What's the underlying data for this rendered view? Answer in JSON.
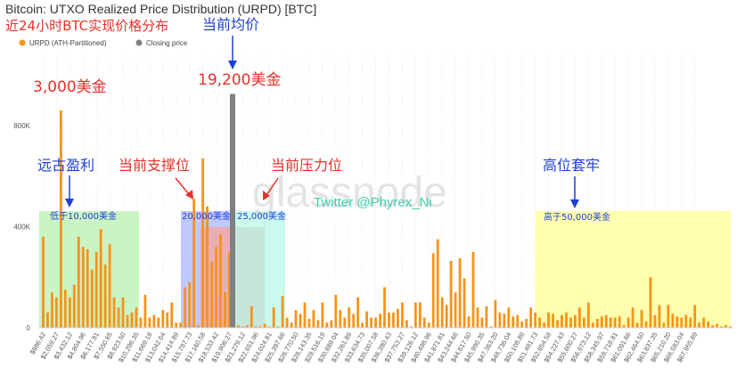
{
  "chart_data": {
    "type": "bar",
    "title": "Bitcoin: UTXO Realized Price Distribution (URPD) [BTC]",
    "subtitle": "近24小时BTC实现价格分布",
    "legend": {
      "placement": "top-left",
      "items": [
        {
          "name": "URPD (ATH-Partitioned)",
          "color": "#f7931a"
        },
        {
          "name": "Closing price",
          "color": "#7f7f7f"
        }
      ]
    },
    "y_axis": {
      "ticks": [
        {
          "value": 0,
          "label": "0"
        },
        {
          "value": 400000,
          "label": "400K"
        },
        {
          "value": 800000,
          "label": "800K"
        }
      ],
      "ylim": [
        0,
        1050000
      ]
    },
    "grid": "vertical-dotted",
    "watermarks": [
      "glassnode",
      "Twitter @Phyrex_Ni"
    ],
    "x_tick_labels": [
      "$986.42",
      "$2,059.27",
      "$3,432.12",
      "$4,804.96",
      "$6,177.81",
      "$7,550.65",
      "$8,923.50",
      "$10,296.35",
      "$11,669.19",
      "$13,042.04",
      "$14,414.89",
      "$15,787.73",
      "$17,160.58",
      "$18,533.42",
      "$19,906.27",
      "$21,279.12",
      "$22,651.96",
      "$24,024.81",
      "$25,397.66",
      "$26,770.50",
      "$28,143.35",
      "$29,516.19",
      "$30,889.04",
      "$32,261.89",
      "$33,634.73",
      "$35,007.58",
      "$36,380.43",
      "$37,753.27",
      "$39,126.12",
      "$40,498.96",
      "$41,871.81",
      "$43,244.66",
      "$44,617.50",
      "$45,990.35",
      "$47,363.20",
      "$48,736.04",
      "$50,108.89",
      "$51,481.73",
      "$52,854.58",
      "$54,227.43",
      "$55,600.27",
      "$56,973.12",
      "$58,345.97",
      "$59,718.81",
      "$61,091.66",
      "$62,464.50",
      "$63,837.35",
      "$65,210.20",
      "$66,583.04",
      "$67,955.89"
    ],
    "x_tick_every": 3,
    "values": [
      360000,
      60000,
      140000,
      120000,
      860000,
      150000,
      120000,
      170000,
      360000,
      320000,
      310000,
      230000,
      300000,
      390000,
      250000,
      330000,
      120000,
      80000,
      120000,
      50000,
      60000,
      80000,
      40000,
      130000,
      40000,
      50000,
      40000,
      70000,
      60000,
      100000,
      20000,
      20000,
      160000,
      180000,
      510000,
      10000,
      670000,
      480000,
      260000,
      320000,
      370000,
      140000,
      300000,
      100000,
      10000,
      5000,
      10000,
      85000,
      5000,
      5000,
      15000,
      5000,
      80000,
      5000,
      125000,
      40000,
      20000,
      70000,
      55000,
      100000,
      35000,
      70000,
      30000,
      100000,
      20000,
      30000,
      130000,
      70000,
      40000,
      80000,
      55000,
      120000,
      20000,
      65000,
      40000,
      40000,
      55000,
      160000,
      60000,
      60000,
      75000,
      100000,
      30000,
      5000,
      100000,
      100000,
      40000,
      20000,
      295000,
      350000,
      120000,
      90000,
      265000,
      140000,
      275000,
      195000,
      45000,
      300000,
      80000,
      40000,
      85000,
      5000,
      110000,
      60000,
      55000,
      80000,
      45000,
      50000,
      25000,
      35000,
      80000,
      60000,
      40000,
      20000,
      60000,
      55000,
      30000,
      50000,
      60000,
      40000,
      50000,
      80000,
      40000,
      100000,
      20000,
      35000,
      45000,
      50000,
      40000,
      40000,
      45000,
      10000,
      40000,
      80000,
      20000,
      70000,
      25000,
      200000,
      50000,
      90000,
      20000,
      90000,
      55000,
      45000,
      40000,
      50000,
      40000,
      90000,
      20000,
      40000,
      25000,
      10000,
      15000,
      5000,
      10000,
      5000
    ],
    "closing_price": {
      "value": 925000,
      "label": "19,200美金"
    },
    "annotations": {
      "peak_label": "3,000美金",
      "avg_label": "当前均价",
      "ancient_profit": "远古盈利",
      "support": "当前支撑位",
      "resistance": "当前压力位",
      "trapped": "高位套牢",
      "below_10k": "低于10,000美金",
      "range_20k": "20,000美金",
      "range_25k": "25,000美金",
      "above_50k": "高于50,000美金"
    },
    "colors": {
      "bar": "#f7931a",
      "closing": "#808080",
      "zone_green": "#b8f0b0",
      "zone_blue": "#aab6ff",
      "zone_red": "#f0a8a8",
      "zone_cyan": "#b8f7e8",
      "zone_yellow": "#ffff9a",
      "red_text": "#e8302a",
      "blue_text": "#1f3fd6"
    }
  }
}
